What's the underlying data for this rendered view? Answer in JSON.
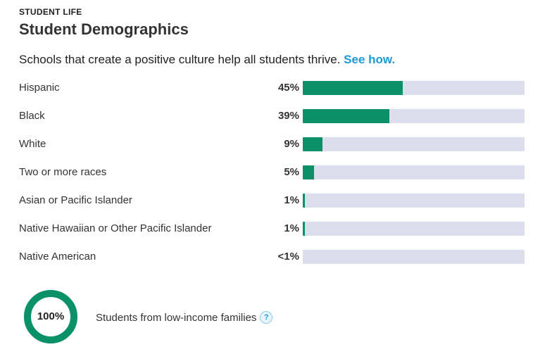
{
  "header": {
    "eyebrow": "STUDENT LIFE",
    "title": "Student Demographics"
  },
  "intro": {
    "text": "Schools that create a positive culture help all students thrive. ",
    "link_label": "See how."
  },
  "colors": {
    "bar_fill": "#0a9168",
    "bar_track": "#dcdeed",
    "link": "#1a9ad6",
    "donut": "#0a9168"
  },
  "chart_data": {
    "type": "bar",
    "categories": [
      "Hispanic",
      "Black",
      "White",
      "Two or more races",
      "Asian or Pacific Islander",
      "Native Hawaiian or Other Pacific Islander",
      "Native American"
    ],
    "value_labels": [
      "45%",
      "39%",
      "9%",
      "5%",
      "1%",
      "1%",
      "<1%"
    ],
    "values": [
      45,
      39,
      9,
      5,
      1,
      1,
      0
    ],
    "ylim": [
      0,
      100
    ]
  },
  "low_income": {
    "percent_label": "100%",
    "percent_value": 100,
    "label": "Students from low-income families",
    "help_icon": "question-icon",
    "help_glyph": "?"
  }
}
